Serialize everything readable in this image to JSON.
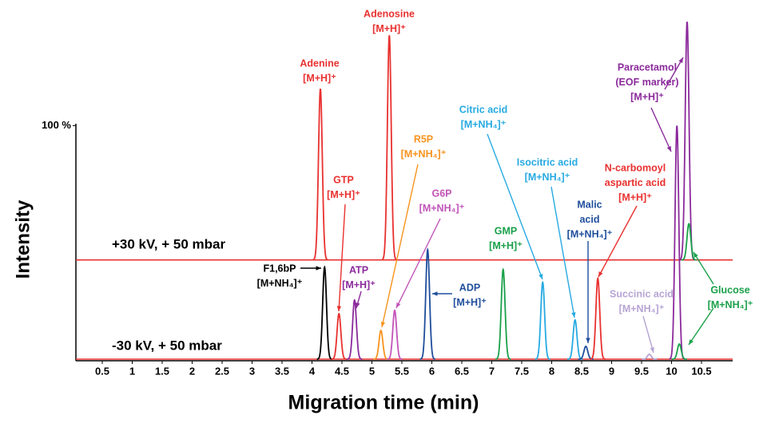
{
  "chart_data": {
    "type": "electropherogram",
    "y_label": "Intensity",
    "x_label": "Migration time (min)",
    "xlim": [
      0.06,
      11.02
    ],
    "xticks": [
      0.5,
      1,
      1.5,
      2,
      2.5,
      3,
      3.5,
      4,
      4.5,
      5,
      5.5,
      6,
      6.5,
      7,
      7.5,
      8,
      8.5,
      9,
      9.5,
      10,
      10.5
    ],
    "ylim": [
      0,
      147
    ],
    "yticks": [
      {
        "value": 100,
        "label": "100 %"
      }
    ],
    "series": [
      {
        "name": "+30 kV, + 50 mbar",
        "color": "#e8312f",
        "baseline": 42.5,
        "x": [
          4.14,
          5.29,
          10.26,
          10.29
        ],
        "values": [
          115.8,
          138.7,
          144.5,
          58
        ],
        "colors": [
          "#e8312f",
          "#e8312f",
          "#8b2a9b",
          "#1aa04a"
        ]
      },
      {
        "name": "-30 kV, + 50 mbar",
        "color": "#e8312f",
        "baseline": 0,
        "x": [
          4.21,
          4.45,
          4.71,
          5.15,
          5.38,
          5.93,
          7.19,
          7.85,
          8.39,
          8.57,
          8.77,
          9.63,
          10.09,
          10.13
        ],
        "values": [
          39.4,
          19.5,
          25.3,
          12.3,
          20.9,
          46.9,
          38.4,
          32.9,
          16.8,
          5.5,
          34.6,
          2.1,
          100,
          6.5
        ],
        "colors": [
          "#000000",
          "#e8312f",
          "#8b2a9b",
          "#f7931e",
          "#c254b8",
          "#1f4e9c",
          "#1aa04a",
          "#27aae1",
          "#27aae1",
          "#1f4e9c",
          "#e8312f",
          "#b7a5d3",
          "#8b2a9b",
          "#1aa04a"
        ]
      }
    ],
    "annotations": [
      {
        "text": [
          "Adenine",
          "[M+H]⁺"
        ],
        "color": "#e8312f"
      },
      {
        "text": [
          "Adenosine",
          "[M+H]⁺"
        ],
        "color": "#e8312f"
      },
      {
        "text": [
          "GTP",
          "[M+H]⁺"
        ],
        "color": "#e8312f"
      },
      {
        "text": [
          "R5P",
          "[M+NH₄]⁺"
        ],
        "color": "#f7931e"
      },
      {
        "text": [
          "G6P",
          "[M+NH₄]⁺"
        ],
        "color": "#c254b8"
      },
      {
        "text": [
          "Citric acid",
          "[M+NH₄]⁺"
        ],
        "color": "#27aae1"
      },
      {
        "text": [
          "Isocitric acid",
          "[M+NH₄]⁺"
        ],
        "color": "#27aae1"
      },
      {
        "text": [
          "Malic",
          "acid",
          "[M+NH₄]⁺"
        ],
        "color": "#1f4e9c"
      },
      {
        "text": [
          "N-carbomoyl",
          "aspartic acid",
          "[M+H]⁺"
        ],
        "color": "#e8312f"
      },
      {
        "text": [
          "Paracetamol",
          "(EOF marker)",
          "[M+H]⁺"
        ],
        "color": "#8b2a9b"
      },
      {
        "text": [
          "Succinic acid",
          "[M+NH₄]⁺"
        ],
        "color": "#b7a5d3"
      },
      {
        "text": [
          "Glucose",
          "[M+NH₄]⁺"
        ],
        "color": "#1aa04a"
      },
      {
        "text": [
          "GMP",
          "[M+H]⁺"
        ],
        "color": "#1aa04a"
      },
      {
        "text": [
          "ATP",
          "[M+H]⁺"
        ],
        "color": "#8b2a9b"
      },
      {
        "text": [
          "ADP",
          "[M+H]⁺"
        ],
        "color": "#1f4e9c"
      },
      {
        "text": [
          "F1,6bP",
          "[M+NH₄]⁺"
        ],
        "color": "#000000"
      }
    ]
  }
}
